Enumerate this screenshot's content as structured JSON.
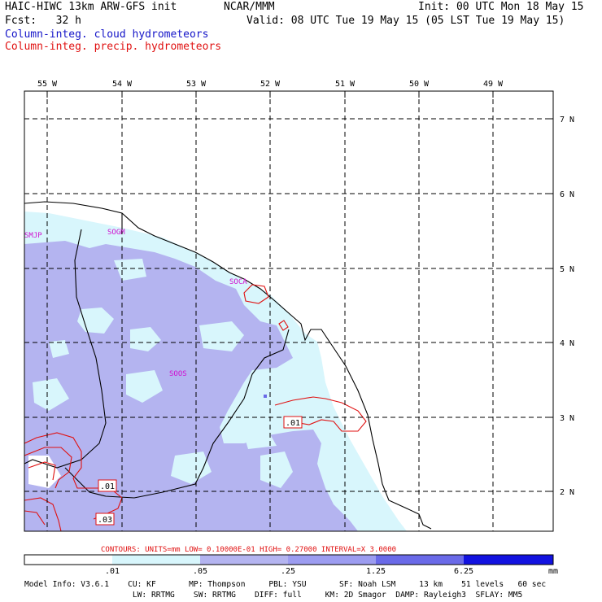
{
  "header": {
    "model_title": "HAIC-HIWC 13km ARW-GFS init",
    "org": "NCAR/MMM",
    "init": "Init: 00 UTC Mon 18 May 15",
    "fcst": "Fcst:   32 h",
    "valid": "Valid: 08 UTC Tue 19 May 15 (05 LST Tue 19 May 15)",
    "field1": "Column-integ. cloud hydrometeors",
    "field2": "Column-integ. precip. hydrometeors"
  },
  "map": {
    "lon_labels": [
      "55 W",
      "54 W",
      "53 W",
      "52 W",
      "51 W",
      "50 W",
      "49 W"
    ],
    "lat_labels": [
      "7 N",
      "6 N",
      "5 N",
      "4 N",
      "3 N",
      "2 N"
    ],
    "stations": [
      "SMJP",
      "SOGM",
      "SOCA",
      "SOOS"
    ],
    "contour_labels": [
      ".01",
      ".01",
      ".03"
    ]
  },
  "contour_info": "CONTOURS:  UNITS=mm  LOW= 0.10000E-01  HIGH= 0.27000      INTERVAL=X  3.0000",
  "colorbar": {
    "ticks": [
      ".01",
      ".05",
      ".25",
      "1.25",
      "6.25"
    ],
    "unit": "mm",
    "colors": [
      "#ffffff",
      "#d8f6fc",
      "#b4b4f0",
      "#9c9cf0",
      "#6a6ae8",
      "#3a3ae0",
      "#1212e0"
    ]
  },
  "footer": {
    "line1": "Model Info: V3.6.1    CU: KF       MP: Thompson     PBL: YSU       SF: Noah LSM     13 km    51 levels   60 sec",
    "line2": "                       LW: RRTMG    SW: RRTMG    DIFF: full     KM: 2D Smagor  DAMP: Rayleigh3  SFLAY: MM5"
  },
  "colors": {
    "title_blue": "#1414c8",
    "contour_red": "#e01010",
    "station_magenta": "#d010d0"
  }
}
